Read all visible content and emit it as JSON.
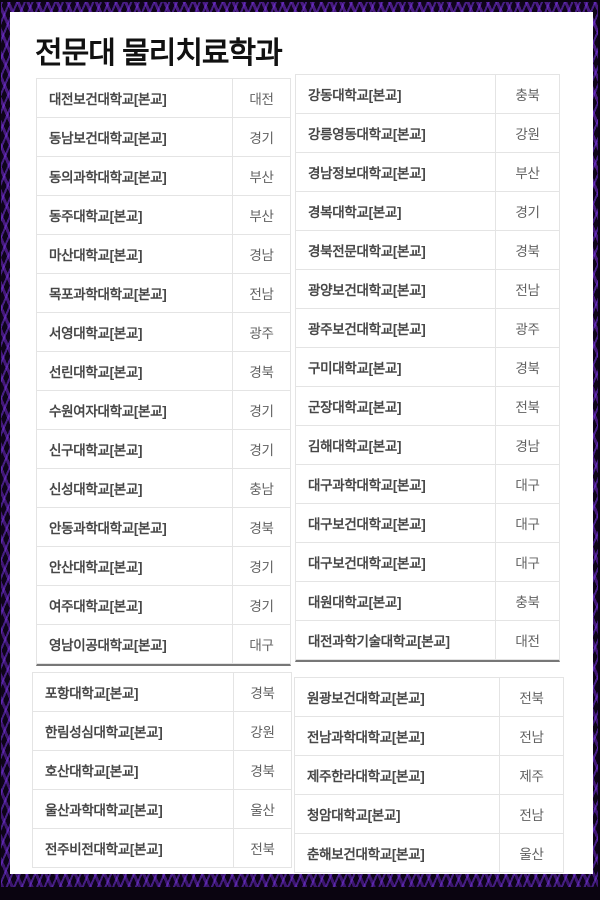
{
  "title": "전문대 물리치료학과",
  "colors": {
    "frame_black": "#0a0410",
    "frame_purple": "#5b21a8",
    "cell_border": "#e4e4e4",
    "section_divider": "#777777",
    "school_text": "#474747",
    "region_text": "#616161",
    "title_text": "#111111"
  },
  "sections": {
    "top_left": [
      {
        "school": "대전보건대학교[본교]",
        "region": "대전"
      },
      {
        "school": "동남보건대학교[본교]",
        "region": "경기"
      },
      {
        "school": "동의과학대학교[본교]",
        "region": "부산"
      },
      {
        "school": "동주대학교[본교]",
        "region": "부산"
      },
      {
        "school": "마산대학교[본교]",
        "region": "경남"
      },
      {
        "school": "목포과학대학교[본교]",
        "region": "전남"
      },
      {
        "school": "서영대학교[본교]",
        "region": "광주"
      },
      {
        "school": "선린대학교[본교]",
        "region": "경북"
      },
      {
        "school": "수원여자대학교[본교]",
        "region": "경기"
      },
      {
        "school": "신구대학교[본교]",
        "region": "경기"
      },
      {
        "school": "신성대학교[본교]",
        "region": "충남"
      },
      {
        "school": "안동과학대학교[본교]",
        "region": "경북"
      },
      {
        "school": "안산대학교[본교]",
        "region": "경기"
      },
      {
        "school": "여주대학교[본교]",
        "region": "경기"
      },
      {
        "school": "영남이공대학교[본교]",
        "region": "대구"
      }
    ],
    "top_right": [
      {
        "school": "강동대학교[본교]",
        "region": "충북"
      },
      {
        "school": "강릉영동대학교[본교]",
        "region": "강원"
      },
      {
        "school": "경남정보대학교[본교]",
        "region": "부산"
      },
      {
        "school": "경복대학교[본교]",
        "region": "경기"
      },
      {
        "school": "경북전문대학교[본교]",
        "region": "경북"
      },
      {
        "school": "광양보건대학교[본교]",
        "region": "전남"
      },
      {
        "school": "광주보건대학교[본교]",
        "region": "광주"
      },
      {
        "school": "구미대학교[본교]",
        "region": "경북"
      },
      {
        "school": "군장대학교[본교]",
        "region": "전북"
      },
      {
        "school": "김해대학교[본교]",
        "region": "경남"
      },
      {
        "school": "대구과학대학교[본교]",
        "region": "대구"
      },
      {
        "school": "대구보건대학교[본교]",
        "region": "대구"
      },
      {
        "school": "대구보건대학교[본교]",
        "region": "대구"
      },
      {
        "school": "대원대학교[본교]",
        "region": "충북"
      },
      {
        "school": "대전과학기술대학교[본교]",
        "region": "대전"
      }
    ],
    "bottom_left": [
      {
        "school": "포항대학교[본교]",
        "region": "경북"
      },
      {
        "school": "한림성심대학교[본교]",
        "region": "강원"
      },
      {
        "school": "호산대학교[본교]",
        "region": "경북"
      },
      {
        "school": "울산과학대학교[본교]",
        "region": "울산"
      },
      {
        "school": "전주비전대학교[본교]",
        "region": "전북"
      }
    ],
    "bottom_right": [
      {
        "school": "원광보건대학교[본교]",
        "region": "전북"
      },
      {
        "school": "전남과학대학교[본교]",
        "region": "전남"
      },
      {
        "school": "제주한라대학교[본교]",
        "region": "제주"
      },
      {
        "school": "청암대학교[본교]",
        "region": "전남"
      },
      {
        "school": "춘해보건대학교[본교]",
        "region": "울산"
      }
    ]
  }
}
